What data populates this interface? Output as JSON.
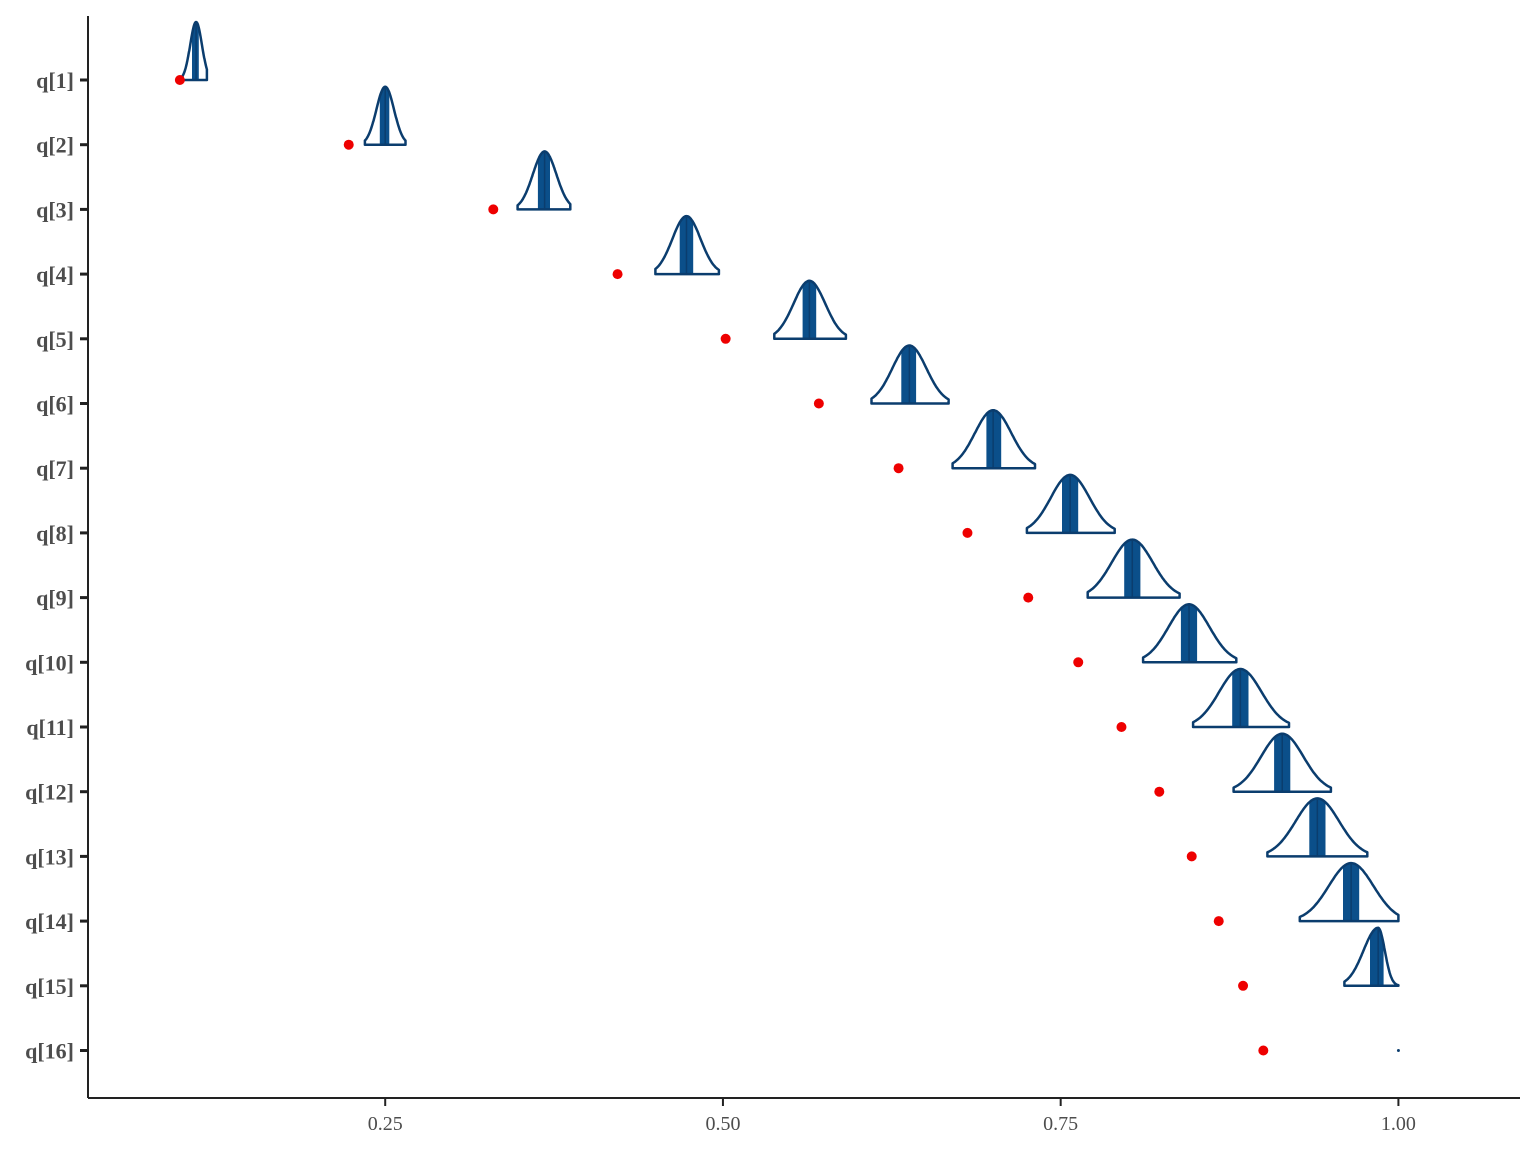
{
  "chart_data": {
    "type": "ridgeline",
    "title": "",
    "xlabel": "",
    "ylabel": "",
    "xlim": [
      0.03,
      1.09
    ],
    "x_ticks": [
      0.25,
      0.5,
      0.75,
      1.0
    ],
    "x_tick_labels": [
      "0.25",
      "0.50",
      "0.75",
      "1.00"
    ],
    "grid": false,
    "colors": {
      "density_outline": "#0b3d6e",
      "density_fill": "#ffffff",
      "interval_fill": "#0b4f8a",
      "point": "#ee0000",
      "axis": "#222222"
    },
    "categories": [
      "q[1]",
      "q[2]",
      "q[3]",
      "q[4]",
      "q[5]",
      "q[6]",
      "q[7]",
      "q[8]",
      "q[9]",
      "q[10]",
      "q[11]",
      "q[12]",
      "q[13]",
      "q[14]",
      "q[15]",
      "q[16]"
    ],
    "posterior": [
      {
        "name": "q[1]",
        "center": 0.11,
        "lo": 0.1,
        "hi": 0.118,
        "inner_lo": 0.107,
        "inner_hi": 0.112
      },
      {
        "name": "q[2]",
        "center": 0.25,
        "lo": 0.235,
        "hi": 0.265,
        "inner_lo": 0.246,
        "inner_hi": 0.253
      },
      {
        "name": "q[3]",
        "center": 0.368,
        "lo": 0.348,
        "hi": 0.387,
        "inner_lo": 0.363,
        "inner_hi": 0.372
      },
      {
        "name": "q[4]",
        "center": 0.473,
        "lo": 0.45,
        "hi": 0.497,
        "inner_lo": 0.468,
        "inner_hi": 0.478
      },
      {
        "name": "q[5]",
        "center": 0.564,
        "lo": 0.538,
        "hi": 0.591,
        "inner_lo": 0.559,
        "inner_hi": 0.569
      },
      {
        "name": "q[6]",
        "center": 0.638,
        "lo": 0.61,
        "hi": 0.667,
        "inner_lo": 0.632,
        "inner_hi": 0.643
      },
      {
        "name": "q[7]",
        "center": 0.7,
        "lo": 0.67,
        "hi": 0.731,
        "inner_lo": 0.695,
        "inner_hi": 0.706
      },
      {
        "name": "q[8]",
        "center": 0.757,
        "lo": 0.725,
        "hi": 0.79,
        "inner_lo": 0.751,
        "inner_hi": 0.763
      },
      {
        "name": "q[9]",
        "center": 0.803,
        "lo": 0.77,
        "hi": 0.838,
        "inner_lo": 0.797,
        "inner_hi": 0.809
      },
      {
        "name": "q[10]",
        "center": 0.845,
        "lo": 0.811,
        "hi": 0.88,
        "inner_lo": 0.839,
        "inner_hi": 0.851
      },
      {
        "name": "q[11]",
        "center": 0.883,
        "lo": 0.848,
        "hi": 0.919,
        "inner_lo": 0.877,
        "inner_hi": 0.889
      },
      {
        "name": "q[12]",
        "center": 0.914,
        "lo": 0.878,
        "hi": 0.95,
        "inner_lo": 0.908,
        "inner_hi": 0.92
      },
      {
        "name": "q[13]",
        "center": 0.94,
        "lo": 0.903,
        "hi": 0.977,
        "inner_lo": 0.934,
        "inner_hi": 0.946
      },
      {
        "name": "q[14]",
        "center": 0.965,
        "lo": 0.927,
        "hi": 1.0,
        "inner_lo": 0.959,
        "inner_hi": 0.971
      },
      {
        "name": "q[15]",
        "center": 0.985,
        "lo": 0.96,
        "hi": 1.0,
        "inner_lo": 0.979,
        "inner_hi": 0.989,
        "skewed": true
      },
      {
        "name": "q[16]",
        "center": 1.0,
        "lo": 1.0,
        "hi": 1.0,
        "inner_lo": 1.0,
        "inner_hi": 1.0,
        "degenerate": true
      }
    ],
    "points": [
      {
        "name": "q[1]",
        "x": 0.098
      },
      {
        "name": "q[2]",
        "x": 0.223
      },
      {
        "name": "q[3]",
        "x": 0.33
      },
      {
        "name": "q[4]",
        "x": 0.422
      },
      {
        "name": "q[5]",
        "x": 0.502
      },
      {
        "name": "q[6]",
        "x": 0.571
      },
      {
        "name": "q[7]",
        "x": 0.63
      },
      {
        "name": "q[8]",
        "x": 0.681
      },
      {
        "name": "q[9]",
        "x": 0.726
      },
      {
        "name": "q[10]",
        "x": 0.763
      },
      {
        "name": "q[11]",
        "x": 0.795
      },
      {
        "name": "q[12]",
        "x": 0.823
      },
      {
        "name": "q[13]",
        "x": 0.847
      },
      {
        "name": "q[14]",
        "x": 0.867
      },
      {
        "name": "q[15]",
        "x": 0.885
      },
      {
        "name": "q[16]",
        "x": 0.9
      }
    ]
  }
}
